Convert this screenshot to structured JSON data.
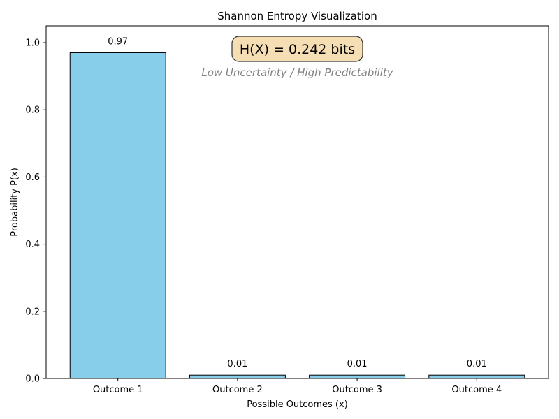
{
  "chart_data": {
    "type": "bar",
    "title": "Shannon Entropy Visualization",
    "xlabel": "Possible Outcomes (x)",
    "ylabel": "Probability P(x)",
    "categories": [
      "Outcome 1",
      "Outcome 2",
      "Outcome 3",
      "Outcome 4"
    ],
    "values": [
      0.97,
      0.01,
      0.01,
      0.01
    ],
    "data_labels": [
      "0.97",
      "0.01",
      "0.01",
      "0.01"
    ],
    "ylim": [
      0,
      1.05
    ],
    "yticks": [
      0.0,
      0.2,
      0.4,
      0.6,
      0.8,
      1.0
    ],
    "ytick_labels": [
      "0.0",
      "0.2",
      "0.4",
      "0.6",
      "0.8",
      "1.0"
    ],
    "grid": false,
    "bar_color": "#87CEEB",
    "bar_edge_color": "#000000",
    "annotations": {
      "entropy": "H(X) = 0.242 bits",
      "entropy_box_color": "#F5DEB3",
      "note": "Low Uncertainty / High Predictability",
      "note_color": "#808080"
    }
  }
}
